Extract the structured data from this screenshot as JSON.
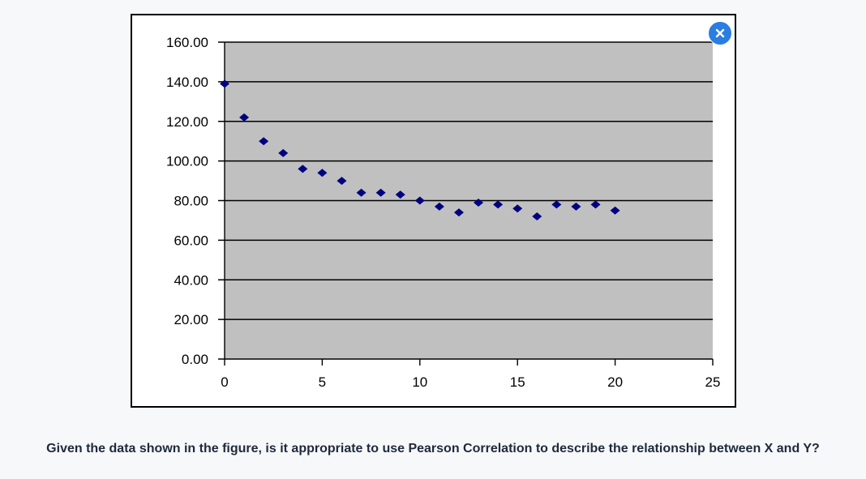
{
  "close_button": {
    "icon": "close-icon",
    "color": "#2a7de1"
  },
  "question": {
    "text": "Given the data shown in the figure, is it appropriate to use Pearson Correlation to describe the relationship between X and Y?"
  },
  "chart_data": {
    "type": "scatter",
    "title": "",
    "xlabel": "",
    "ylabel": "",
    "xlim": [
      0,
      25
    ],
    "ylim": [
      0,
      160
    ],
    "x_ticks": [
      "0",
      "5",
      "10",
      "15",
      "20",
      "25"
    ],
    "y_ticks": [
      "0.00",
      "20.00",
      "40.00",
      "60.00",
      "80.00",
      "100.00",
      "120.00",
      "140.00",
      "160.00"
    ],
    "grid": "horizontal",
    "legend": "none",
    "plot_background": "#c0c0c0",
    "marker_color": "#000080",
    "marker": "diamond",
    "x": [
      0,
      1,
      2,
      3,
      4,
      5,
      6,
      7,
      8,
      9,
      10,
      11,
      12,
      13,
      14,
      15,
      16,
      17,
      18,
      19,
      20
    ],
    "y": [
      139,
      122,
      110,
      104,
      96,
      94,
      90,
      84,
      84,
      83,
      80,
      77,
      74,
      79,
      78,
      76,
      72,
      78,
      77,
      78,
      75
    ]
  }
}
